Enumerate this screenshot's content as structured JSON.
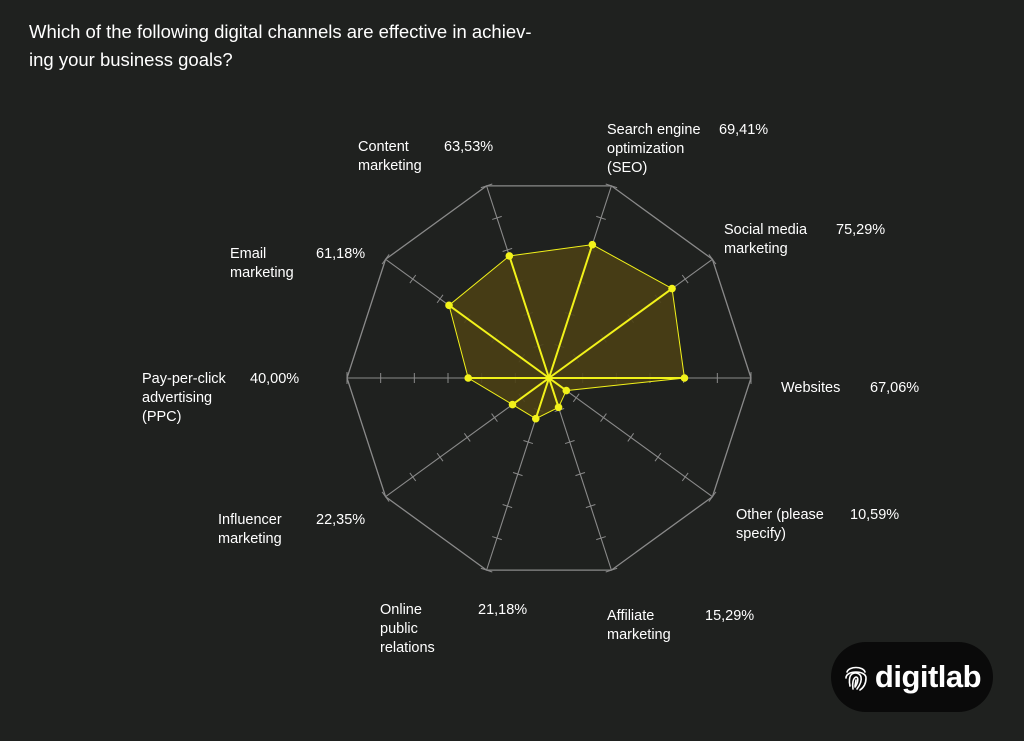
{
  "title_lines": [
    "Which of the following digital channels are effective in achiev-",
    "ing your business goals?"
  ],
  "brand": {
    "name": "digitlab",
    "icon": "fingerprint-icon"
  },
  "colors": {
    "background": "#1f211f",
    "grid": "#8a8a8a",
    "accent": "#f2f21a",
    "fill": "#4a3f14"
  },
  "chart_data": {
    "type": "radar",
    "title": "Which of the following digital channels are effective in achieving your business goals?",
    "rmax": 100,
    "grid_rings": 1,
    "categories": [
      {
        "label": [
          "Websites"
        ],
        "value_label": "67,06%"
      },
      {
        "label": [
          "Social media",
          "marketing"
        ],
        "value_label": "75,29%"
      },
      {
        "label": [
          "Search engine",
          "optimization",
          "(SEO)"
        ],
        "value_label": "69,41%"
      },
      {
        "label": [
          "Content",
          "marketing"
        ],
        "value_label": "63,53%"
      },
      {
        "label": [
          "Email",
          "marketing"
        ],
        "value_label": "61,18%"
      },
      {
        "label": [
          "Pay-per-click",
          "advertising",
          "(PPC)"
        ],
        "value_label": "40,00%"
      },
      {
        "label": [
          "Influencer",
          "marketing"
        ],
        "value_label": "22,35%"
      },
      {
        "label": [
          "Online",
          "public",
          "relations"
        ],
        "value_label": "21,18%"
      },
      {
        "label": [
          "Affiliate",
          "marketing"
        ],
        "value_label": "15,29%"
      },
      {
        "label": [
          "Other (please",
          "specify)"
        ],
        "value_label": "10,59%"
      }
    ],
    "values": [
      67.06,
      75.29,
      69.41,
      63.53,
      61.18,
      40.0,
      22.35,
      21.18,
      15.29,
      10.59
    ]
  }
}
